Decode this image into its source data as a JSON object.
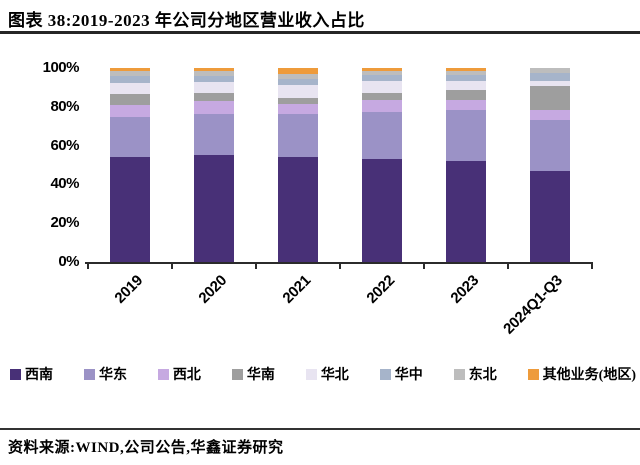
{
  "header": {
    "title": "图表 38:2019-2023 年公司分地区营业收入占比"
  },
  "chart_data": {
    "type": "bar",
    "subtype": "stacked-100-percent",
    "title": "图表 38:2019-2023 年公司分地区营业收入占比",
    "categories": [
      "2019",
      "2020",
      "2021",
      "2022",
      "2023",
      "2024Q1-Q3"
    ],
    "series": [
      {
        "name": "西南",
        "color": "#483077",
        "values": [
          54,
          55,
          54,
          53,
          52,
          47
        ]
      },
      {
        "name": "华东",
        "color": "#9b92c6",
        "values": [
          21,
          21.5,
          22.5,
          24.5,
          26.5,
          26
        ]
      },
      {
        "name": "西北",
        "color": "#c6a9e1",
        "values": [
          6,
          6.5,
          5,
          6,
          5,
          5.5
        ]
      },
      {
        "name": "华南",
        "color": "#9e9e9e",
        "values": [
          5.5,
          4,
          3,
          3.5,
          5,
          12
        ]
      },
      {
        "name": "华北",
        "color": "#e8e4f1",
        "values": [
          6,
          6,
          7,
          6.5,
          5,
          3
        ]
      },
      {
        "name": "华中",
        "color": "#a6b4ca",
        "values": [
          3.5,
          3,
          3,
          3,
          3,
          4
        ]
      },
      {
        "name": "东北",
        "color": "#bdbdbd",
        "values": [
          2.5,
          2.5,
          2.5,
          2,
          2,
          2.5
        ]
      },
      {
        "name": "其他业务(地区)",
        "color": "#ee9b3b",
        "values": [
          1.5,
          1.5,
          3,
          1.5,
          1.5,
          0
        ]
      }
    ],
    "xlabel": "",
    "ylabel": "",
    "ylim": [
      0,
      100
    ],
    "y_ticks": [
      "0%",
      "20%",
      "40%",
      "60%",
      "80%",
      "100%"
    ],
    "grid": false,
    "legend_position": "bottom"
  },
  "footer": {
    "source": "资料来源:WIND,公司公告,华鑫证券研究"
  }
}
